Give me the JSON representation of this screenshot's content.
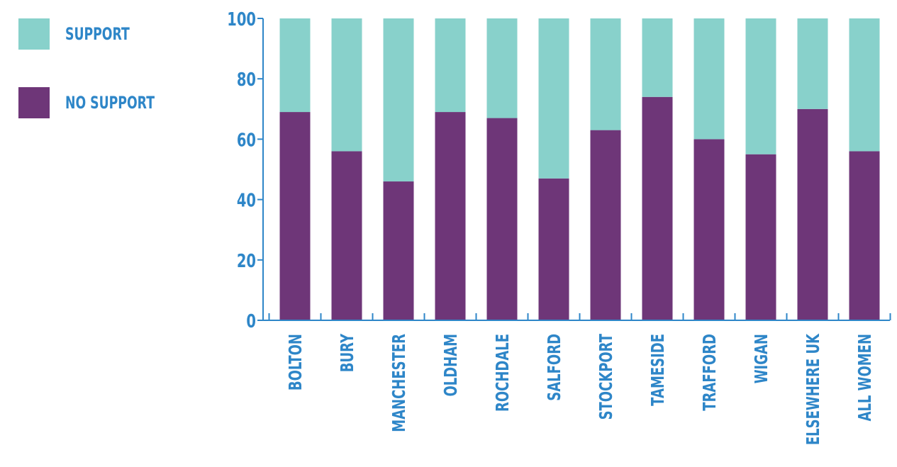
{
  "chart_data": {
    "type": "bar",
    "stacked": true,
    "categories": [
      "BOLTON",
      "BURY",
      "MANCHESTER",
      "OLDHAM",
      "ROCHDALE",
      "SALFORD",
      "STOCKPORT",
      "TAMESIDE",
      "TRAFFORD",
      "WIGAN",
      "ELSEWHERE UK",
      "ALL WOMEN"
    ],
    "series": [
      {
        "name": "NO SUPPORT",
        "color": "#6e3678",
        "values": [
          69,
          56,
          46,
          69,
          67,
          47,
          63,
          74,
          60,
          55,
          70,
          56
        ]
      },
      {
        "name": "SUPPORT",
        "color": "#88d1cb",
        "values": [
          31,
          44,
          54,
          31,
          33,
          53,
          37,
          26,
          40,
          45,
          30,
          44
        ]
      }
    ],
    "ylim": [
      0,
      100
    ],
    "yticks": [
      "0",
      "20",
      "40",
      "60",
      "80",
      "100"
    ],
    "grid": false,
    "legend": [
      {
        "label": "SUPPORT",
        "color": "#88d1cb"
      },
      {
        "label": "NO SUPPORT",
        "color": "#6e3678"
      }
    ],
    "legend_position": "left",
    "axis_color": "#2e86c8",
    "text_color": "#2e86c8"
  }
}
